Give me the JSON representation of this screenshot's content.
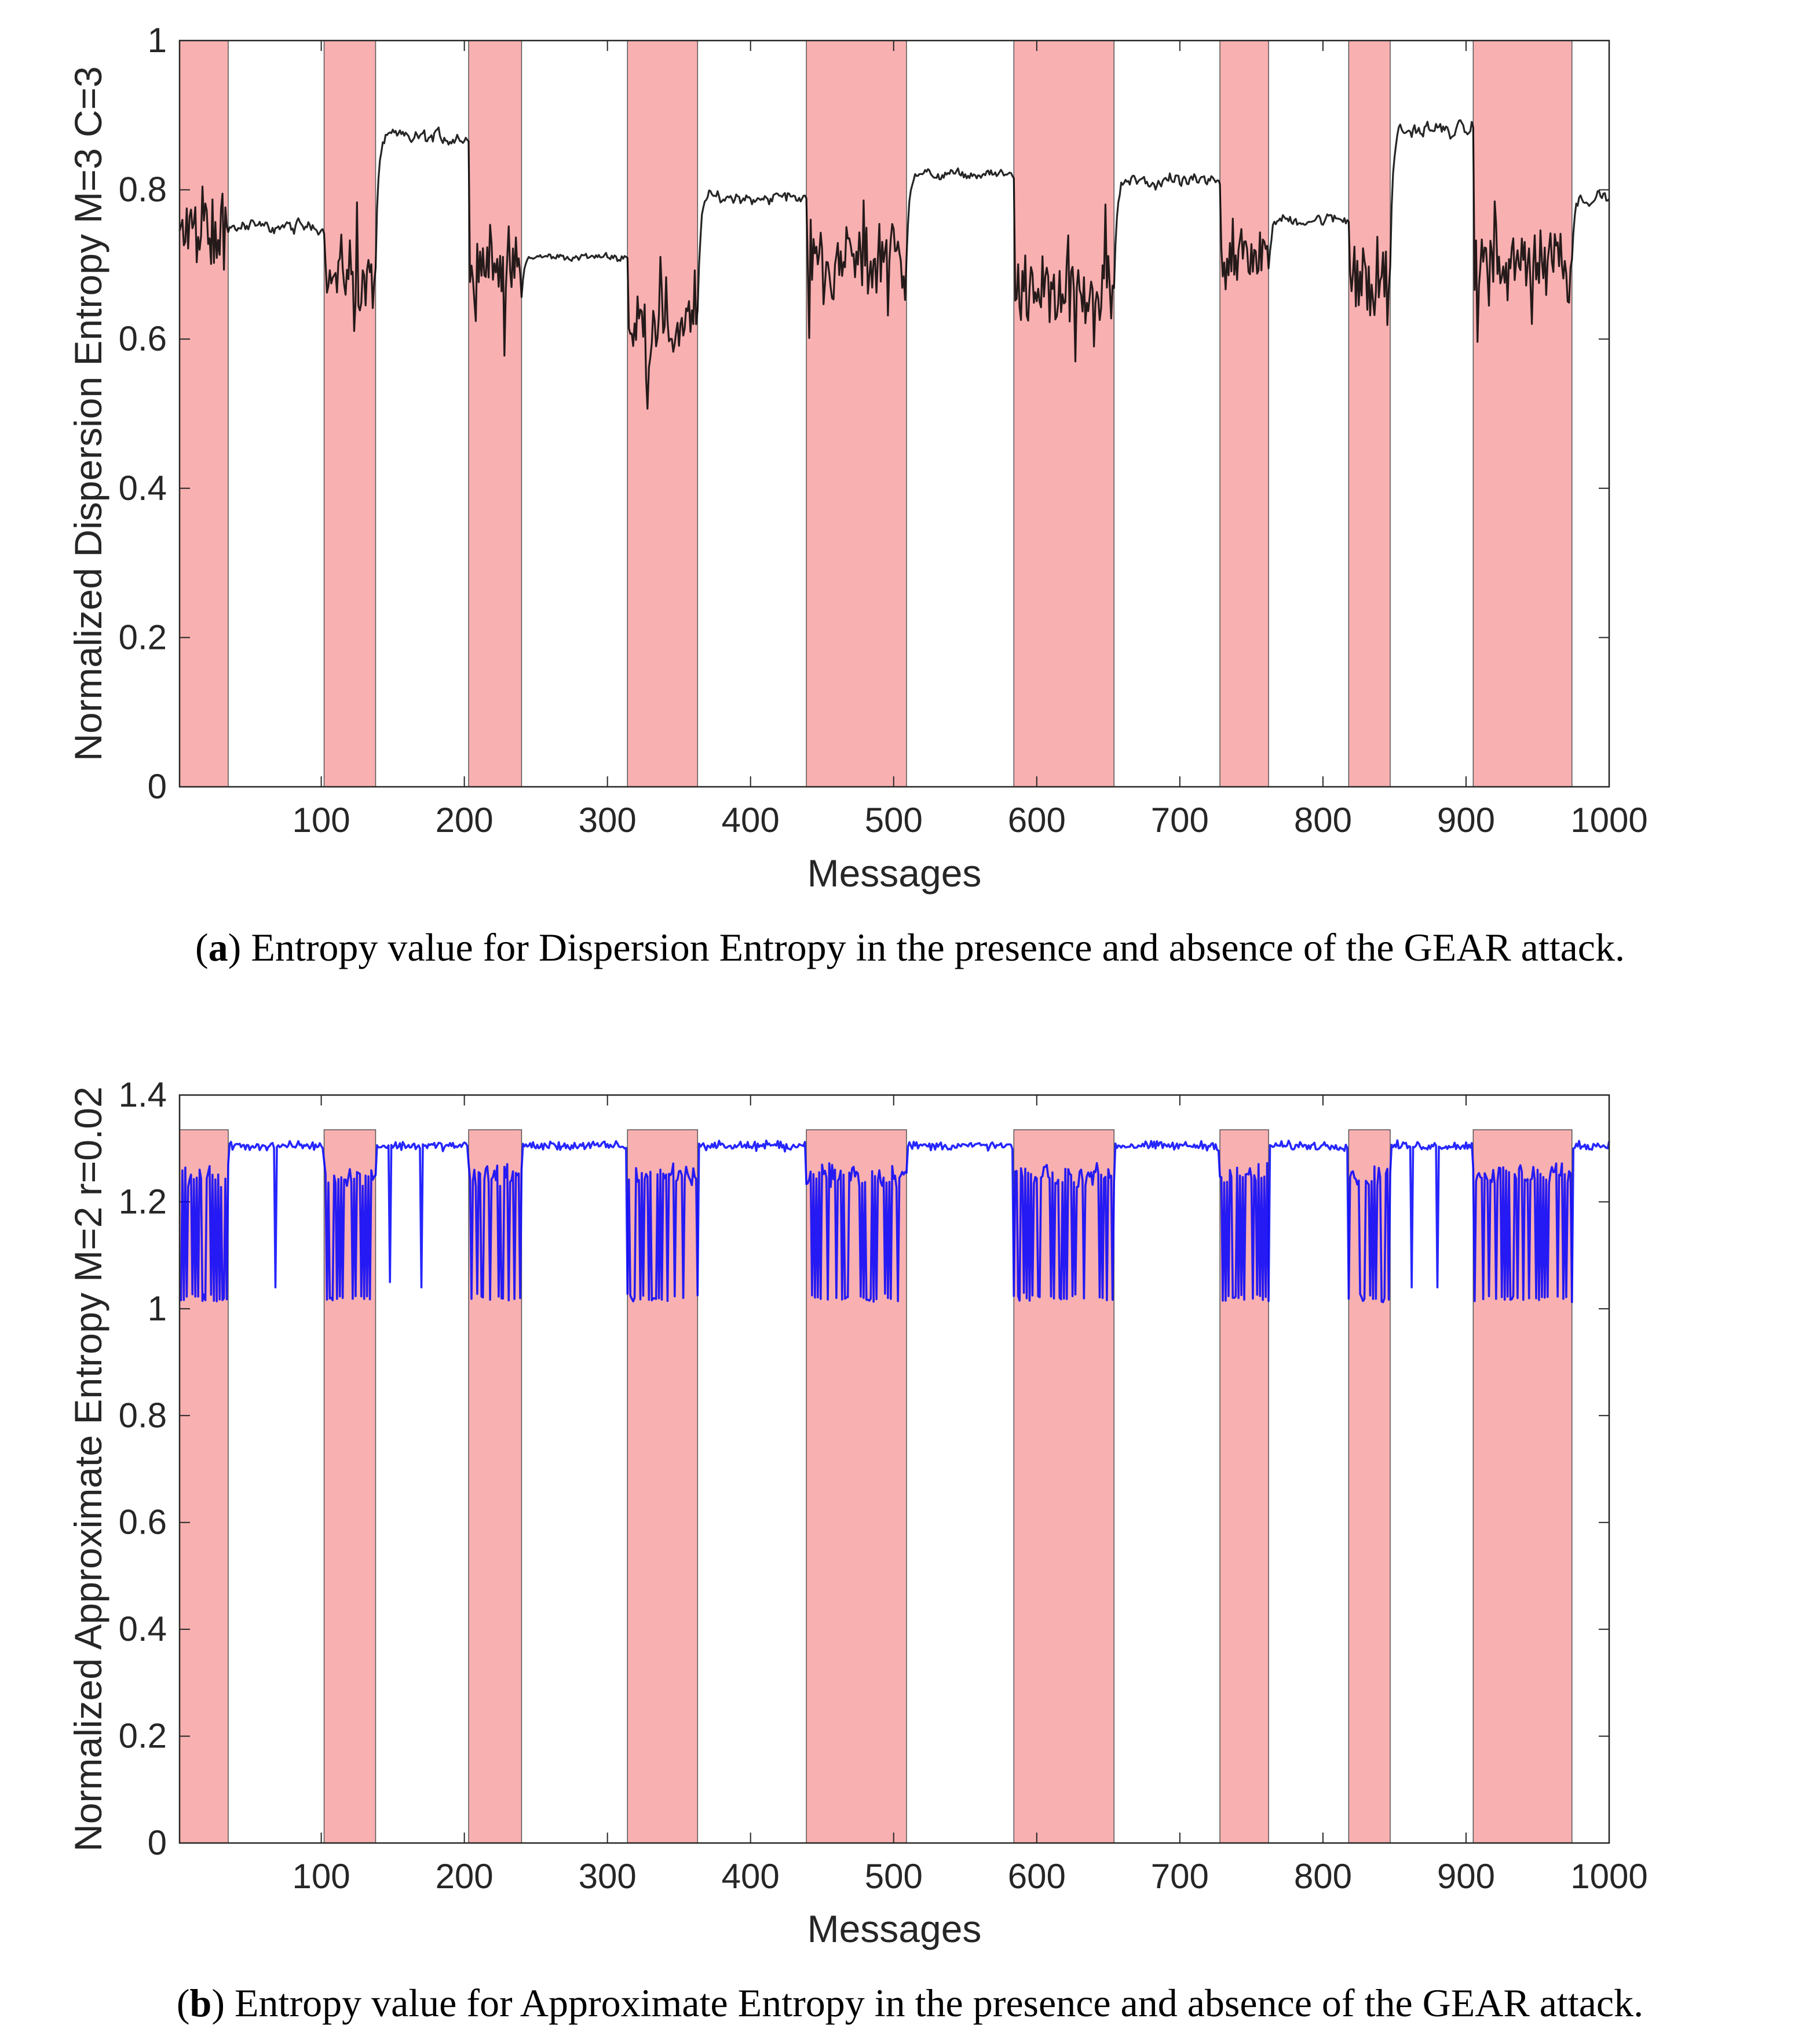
{
  "chart_data": [
    {
      "type": "line",
      "panel": "a",
      "ylabel": "Normalized Dispersion Entropy M=3 C=3",
      "xlabel": "Messages",
      "xlim": [
        1,
        1000
      ],
      "ylim": [
        0,
        1
      ],
      "xticks": [
        100,
        200,
        300,
        400,
        500,
        600,
        700,
        800,
        900,
        1000
      ],
      "yticks": [
        0,
        0.2,
        0.4,
        0.6,
        0.8,
        1
      ],
      "ytick_labels": [
        "0",
        "0.2",
        "0.4",
        "0.6",
        "0.8",
        "1"
      ],
      "line_color": "#000000",
      "shaded_color": "#f9b0b1",
      "attack_intervals": [
        [
          1,
          35
        ],
        [
          102,
          138
        ],
        [
          203,
          240
        ],
        [
          314,
          363
        ],
        [
          439,
          509
        ],
        [
          584,
          654
        ],
        [
          728,
          762
        ],
        [
          818,
          847
        ],
        [
          905,
          974
        ]
      ],
      "series_profile": {
        "name": "Dispersion Entropy",
        "segments": [
          {
            "x": [
              1,
              35
            ],
            "mean": 0.74,
            "noise": 0.1,
            "attack": true
          },
          {
            "x": [
              35,
              102
            ],
            "mean": 0.75,
            "noise": 0.05,
            "attack": false
          },
          {
            "x": [
              102,
              138
            ],
            "mean": 0.69,
            "noise": 0.1,
            "attack": true
          },
          {
            "x": [
              138,
              203
            ],
            "mean": 0.87,
            "noise": 0.06,
            "attack": false
          },
          {
            "x": [
              203,
              240
            ],
            "mean": 0.7,
            "noise": 0.1,
            "attack": true
          },
          {
            "x": [
              240,
              314
            ],
            "mean": 0.71,
            "noise": 0.03,
            "attack": false
          },
          {
            "x": [
              314,
              363
            ],
            "mean": 0.62,
            "noise": 0.1,
            "attack": true
          },
          {
            "x": [
              363,
              439
            ],
            "mean": 0.79,
            "noise": 0.05,
            "attack": false
          },
          {
            "x": [
              439,
              509
            ],
            "mean": 0.71,
            "noise": 0.1,
            "attack": true
          },
          {
            "x": [
              509,
              584
            ],
            "mean": 0.82,
            "noise": 0.04,
            "attack": false
          },
          {
            "x": [
              584,
              654
            ],
            "mean": 0.66,
            "noise": 0.09,
            "attack": true
          },
          {
            "x": [
              654,
              728
            ],
            "mean": 0.81,
            "noise": 0.06,
            "attack": false
          },
          {
            "x": [
              728,
              762
            ],
            "mean": 0.72,
            "noise": 0.09,
            "attack": true
          },
          {
            "x": [
              762,
              818
            ],
            "mean": 0.76,
            "noise": 0.05,
            "attack": false
          },
          {
            "x": [
              818,
              847
            ],
            "mean": 0.68,
            "noise": 0.1,
            "attack": true
          },
          {
            "x": [
              847,
              905
            ],
            "mean": 0.88,
            "noise": 0.06,
            "attack": false
          },
          {
            "x": [
              905,
              974
            ],
            "mean": 0.7,
            "noise": 0.1,
            "attack": true
          },
          {
            "x": [
              974,
              1000
            ],
            "mean": 0.79,
            "noise": 0.05,
            "attack": false
          }
        ]
      },
      "caption_label": "a",
      "caption_text": ") Entropy value for Dispersion Entropy in the presence and absence of the GEAR attack."
    },
    {
      "type": "line",
      "panel": "b",
      "ylabel": "Normalized Approximate Entropy M=2 r=0.02",
      "xlabel": "Messages",
      "xlim": [
        1,
        1000
      ],
      "ylim": [
        0,
        1.4
      ],
      "xticks": [
        100,
        200,
        300,
        400,
        500,
        600,
        700,
        800,
        900,
        1000
      ],
      "yticks": [
        0,
        0.2,
        0.4,
        0.6,
        0.8,
        1,
        1.2,
        1.4
      ],
      "ytick_labels": [
        "0",
        "0.2",
        "0.4",
        "0.6",
        "0.8",
        "1",
        "1.2",
        "1.4"
      ],
      "line_color": "#0000ff",
      "shaded_color": "#f9b0b1",
      "attack_intervals": [
        [
          1,
          35
        ],
        [
          102,
          138
        ],
        [
          203,
          240
        ],
        [
          314,
          363
        ],
        [
          439,
          509
        ],
        [
          584,
          654
        ],
        [
          728,
          762
        ],
        [
          818,
          847
        ],
        [
          905,
          974
        ]
      ],
      "series_profile": {
        "name": "Approximate Entropy",
        "normal_level": 1.305,
        "attack_low": 1.02,
        "attack_high": 1.25,
        "dips": [
          [
            68,
            1.04
          ],
          [
            148,
            1.05
          ],
          [
            170,
            1.04
          ],
          [
            862,
            1.04
          ],
          [
            880,
            1.04
          ]
        ]
      },
      "caption_label": "b",
      "caption_text": ") Entropy value for Approximate Entropy in the presence and absence of the GEAR attack."
    }
  ]
}
